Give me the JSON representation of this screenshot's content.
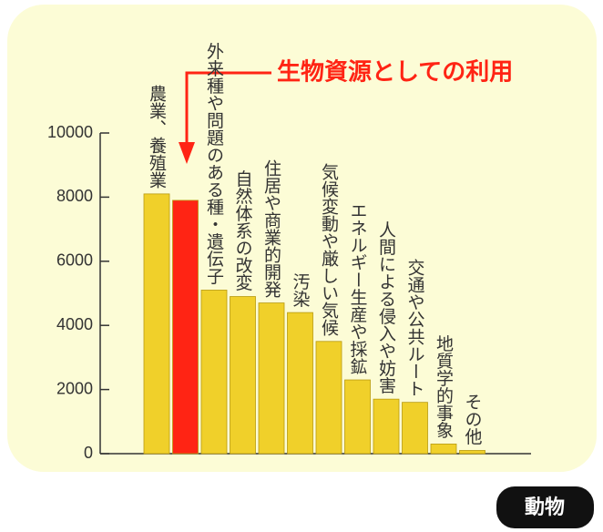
{
  "chart_data": {
    "type": "bar",
    "categories": [
      "農業、養殖業",
      "生物資源としての利用",
      "外来種や問題のある種・遺伝子",
      "自然体系の改変",
      "住居や商業的開発",
      "汚染",
      "気候変動や厳しい気候",
      "エネルギー生産や採鉱",
      "人間による侵入や妨害",
      "交通や公共ルート",
      "地質学的事象",
      "その他"
    ],
    "values": [
      8100,
      7900,
      5100,
      4900,
      4700,
      4400,
      3500,
      2300,
      1700,
      1600,
      300,
      100
    ],
    "colors": [
      "#f0d02a",
      "#ff2414",
      "#f0d02a",
      "#f0d02a",
      "#f0d02a",
      "#f0d02a",
      "#f0d02a",
      "#f0d02a",
      "#f0d02a",
      "#f0d02a",
      "#f0d02a",
      "#f0d02a"
    ],
    "highlight": 1,
    "ylim": [
      0,
      10000
    ],
    "yticks": [
      0,
      2000,
      4000,
      6000,
      8000,
      10000
    ],
    "badge": "動物"
  }
}
